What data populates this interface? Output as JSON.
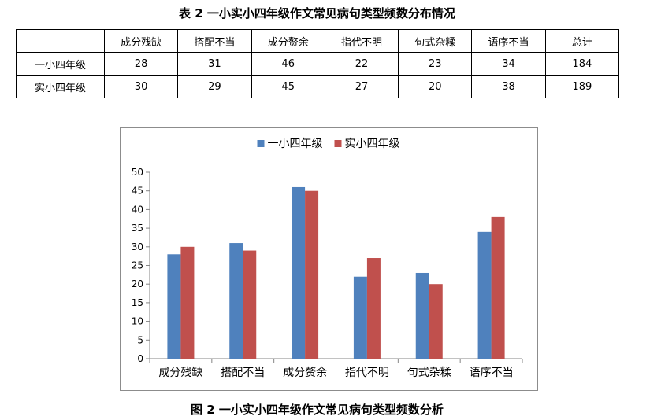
{
  "table": {
    "title": "表 2  一小实小四年级作文常见病句类型频数分布情况",
    "corner": "",
    "headers": [
      "成分残缺",
      "搭配不当",
      "成分赘余",
      "指代不明",
      "句式杂糅",
      "语序不当",
      "总计"
    ],
    "rows": [
      {
        "label": "一小四年级",
        "cells": [
          "28",
          "31",
          "46",
          "22",
          "23",
          "34",
          "184"
        ]
      },
      {
        "label": "实小四年级",
        "cells": [
          "30",
          "29",
          "45",
          "27",
          "20",
          "38",
          "189"
        ]
      }
    ]
  },
  "chart_data": {
    "type": "bar",
    "title": "",
    "xlabel": "",
    "ylabel": "",
    "categories": [
      "成分残缺",
      "搭配不当",
      "成分赘余",
      "指代不明",
      "句式杂糅",
      "语序不当"
    ],
    "series": [
      {
        "name": "一小四年级",
        "color": "#4f81bd",
        "values": [
          28,
          31,
          46,
          22,
          23,
          34
        ]
      },
      {
        "name": "实小四年级",
        "color": "#c0504d",
        "values": [
          30,
          29,
          45,
          27,
          20,
          38
        ]
      }
    ],
    "ylim": [
      0,
      50
    ],
    "yticks": [
      0,
      5,
      10,
      15,
      20,
      25,
      30,
      35,
      40,
      45,
      50
    ],
    "grid": false,
    "legend": "top-center"
  },
  "figure": {
    "caption": "图 2  一小实小四年级作文常见病句类型频数分析"
  }
}
